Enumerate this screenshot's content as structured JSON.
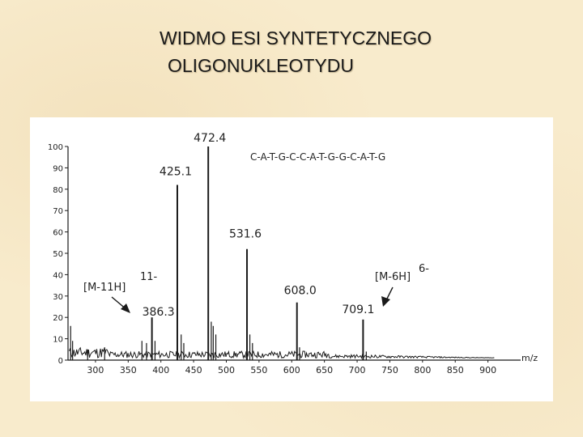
{
  "slide": {
    "title_line1": "WIDMO ESI SYNTETYCZNEGO",
    "title_line2": "OLIGONUKLEOTYDU"
  },
  "chart_data": {
    "type": "line",
    "title": "",
    "xlabel": "m/z",
    "ylabel": "",
    "xlim": [
      258,
      950
    ],
    "ylim": [
      0,
      100
    ],
    "x_ticks": [
      300,
      350,
      400,
      450,
      500,
      550,
      600,
      650,
      700,
      750,
      800,
      850,
      900
    ],
    "y_ticks": [
      0,
      10,
      20,
      30,
      40,
      50,
      60,
      70,
      80,
      90,
      100
    ],
    "peaks": [
      {
        "mz": 386.3,
        "intensity": 20,
        "label": "386.3"
      },
      {
        "mz": 425.1,
        "intensity": 82,
        "label": "425.1"
      },
      {
        "mz": 472.4,
        "intensity": 100,
        "label": "472.4"
      },
      {
        "mz": 531.6,
        "intensity": 52,
        "label": "531.6"
      },
      {
        "mz": 608.0,
        "intensity": 27,
        "label": "608.0"
      },
      {
        "mz": 709.1,
        "intensity": 19,
        "label": "709.1"
      }
    ],
    "annotations": [
      {
        "text": "[M-11H]",
        "charge": "11-",
        "points_to_mz": 386.3
      },
      {
        "text": "[M-6H]",
        "charge": "6-",
        "points_to_mz": 709.1
      }
    ],
    "sequence": "C-A-T-G-C-C-A-T-G-G-C-A-T-G",
    "grid": false,
    "colors": {
      "trace": "#1a1a1a",
      "panel": "#ffffff",
      "background": "#f8ebcc"
    }
  }
}
